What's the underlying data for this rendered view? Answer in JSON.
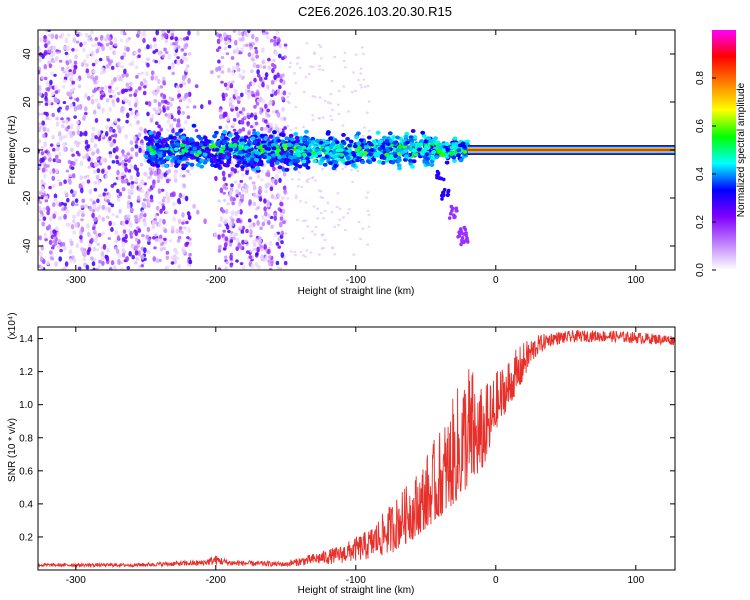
{
  "title": "C2E6.2026.103.20.30.R15",
  "chart_data": [
    {
      "type": "heatmap",
      "name": "spectrogram",
      "xlabel": "Height of straight line (km)",
      "ylabel": "Frequency (Hz)",
      "xlim": [
        -327,
        128
      ],
      "ylim": [
        -50,
        50
      ],
      "x_ticks": [
        -300,
        -200,
        -100,
        0,
        100
      ],
      "x_tick_labels": [
        "-300",
        "-200",
        "-100",
        "0",
        "100"
      ],
      "y_ticks": [
        -40,
        -20,
        0,
        20,
        40
      ],
      "y_tick_labels": [
        "-40",
        "-20",
        "0",
        "20",
        "40"
      ],
      "colorbar": {
        "label": "Normalized spectral amplitude",
        "range": [
          0,
          1
        ],
        "ticks": [
          0.0,
          0.2,
          0.4,
          0.6,
          0.8
        ],
        "tick_labels": [
          "0.0",
          "0.2",
          "0.4",
          "0.6",
          "0.8"
        ],
        "colors": [
          "#ffffff",
          "#c080ff",
          "#8000ff",
          "#0000ff",
          "#00ffff",
          "#00ff00",
          "#ffff00",
          "#ff8000",
          "#ff0000",
          "#ff00ff"
        ]
      },
      "features": {
        "noise_region_x": [
          -327,
          -150
        ],
        "noise_gap_x": [
          -218,
          -198
        ],
        "main_band_x": [
          -250,
          128
        ],
        "main_band_center_hz": 0,
        "strong_line_start_x": -20,
        "branch_points": [
          [
            -40,
            -10
          ],
          [
            -36,
            -18
          ],
          [
            -30,
            -26
          ],
          [
            -24,
            -34
          ],
          [
            -22,
            -37
          ]
        ]
      }
    },
    {
      "type": "line",
      "name": "snr",
      "xlabel": "Height of straight line (km)",
      "ylabel": "SNR (10 * v/v)",
      "y_multiplier": "(x10⁴)",
      "xlim": [
        -327,
        128
      ],
      "ylim": [
        0,
        1.47
      ],
      "x_ticks": [
        -300,
        -200,
        -100,
        0,
        100
      ],
      "x_tick_labels": [
        "-300",
        "-200",
        "-100",
        "0",
        "100"
      ],
      "y_ticks": [
        0.2,
        0.4,
        0.6,
        0.8,
        1.0,
        1.2,
        1.4
      ],
      "y_tick_labels": [
        "0.2",
        "0.4",
        "0.6",
        "0.8",
        "1.0",
        "1.2",
        "1.4"
      ],
      "color": "#e8302a",
      "envelope_x": [
        -327,
        -260,
        -210,
        -200,
        -190,
        -150,
        -130,
        -110,
        -100,
        -90,
        -80,
        -70,
        -60,
        -50,
        -40,
        -30,
        -20,
        -15,
        -10,
        -5,
        0,
        10,
        20,
        30,
        40,
        60,
        80,
        100,
        128
      ],
      "envelope_low": [
        0.02,
        0.02,
        0.025,
        0.03,
        0.025,
        0.02,
        0.03,
        0.04,
        0.05,
        0.06,
        0.08,
        0.12,
        0.18,
        0.25,
        0.32,
        0.4,
        0.5,
        0.55,
        0.6,
        0.7,
        0.85,
        1.0,
        1.15,
        1.3,
        1.36,
        1.38,
        1.38,
        1.37,
        1.36
      ],
      "envelope_high": [
        0.04,
        0.04,
        0.06,
        0.09,
        0.06,
        0.05,
        0.1,
        0.15,
        0.2,
        0.25,
        0.35,
        0.45,
        0.55,
        0.7,
        0.85,
        1.05,
        1.3,
        1.2,
        1.1,
        1.15,
        1.2,
        1.3,
        1.38,
        1.42,
        1.44,
        1.45,
        1.45,
        1.44,
        1.42
      ]
    }
  ]
}
